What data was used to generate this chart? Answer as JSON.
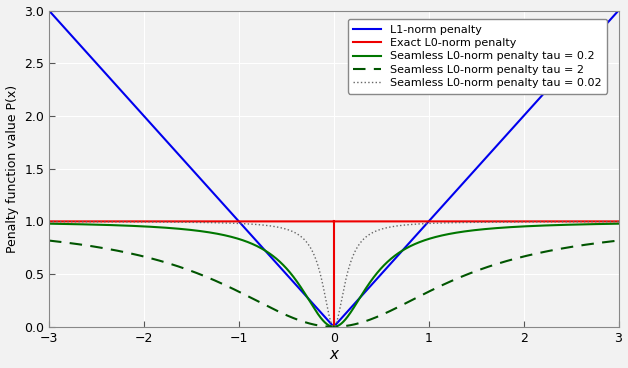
{
  "xlim": [
    -3,
    3
  ],
  "ylim": [
    0,
    3
  ],
  "xlabel": "x",
  "ylabel": "Penalty function value P(x)",
  "legend_entries": [
    "L1-norm penalty",
    "Exact L0-norm penalty",
    "Seamless L0-norm penalty tau = 0.2",
    "Seamless L0-norm penalty tau = 2",
    "Seamless L0-norm penalty tau = 0.02"
  ],
  "colors": {
    "l1": "#0000EE",
    "exact_l0": "#EE0000",
    "seamless_02": "#007700",
    "seamless_2": "#005500",
    "seamless_002": "#666666"
  },
  "tau_values": [
    0.2,
    2.0,
    0.02
  ],
  "figsize": [
    6.28,
    3.68
  ],
  "dpi": 100,
  "bg_color": "#F2F2F2",
  "grid_color": "#FFFFFF",
  "xticks": [
    -3,
    -2,
    -1,
    0,
    1,
    2,
    3
  ],
  "yticks": [
    0,
    0.5,
    1.0,
    1.5,
    2.0,
    2.5,
    3.0
  ]
}
